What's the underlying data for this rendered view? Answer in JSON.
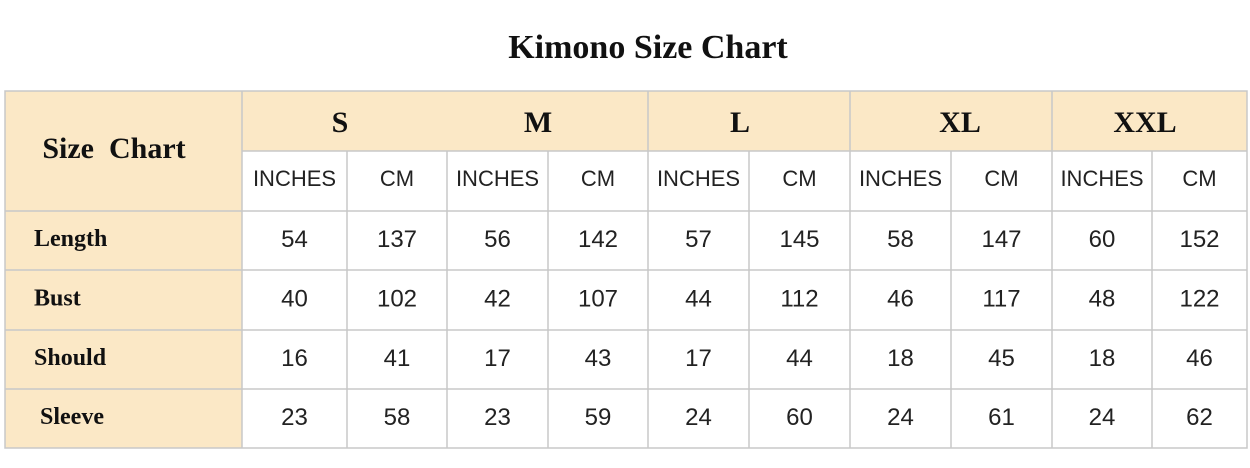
{
  "title": "Kimono Size Chart",
  "table": {
    "corner": "Size  Chart",
    "sizes": [
      "S",
      "M",
      "L",
      "XL",
      "XXL"
    ],
    "units": [
      "INCHES",
      "CM",
      "INCHES",
      "CM",
      "INCHES",
      "CM",
      "INCHES",
      "CM",
      "INCHES",
      "CM"
    ],
    "rows": [
      {
        "label": "Length",
        "values": [
          54,
          137,
          56,
          142,
          57,
          145,
          58,
          147,
          60,
          152
        ]
      },
      {
        "label": "Bust",
        "values": [
          40,
          102,
          42,
          107,
          44,
          112,
          46,
          117,
          48,
          122
        ]
      },
      {
        "label": "Should",
        "values": [
          16,
          41,
          17,
          43,
          17,
          44,
          18,
          45,
          18,
          46
        ]
      },
      {
        "label": "Sleeve",
        "values": [
          23,
          58,
          23,
          59,
          24,
          60,
          24,
          61,
          24,
          62
        ]
      }
    ]
  }
}
